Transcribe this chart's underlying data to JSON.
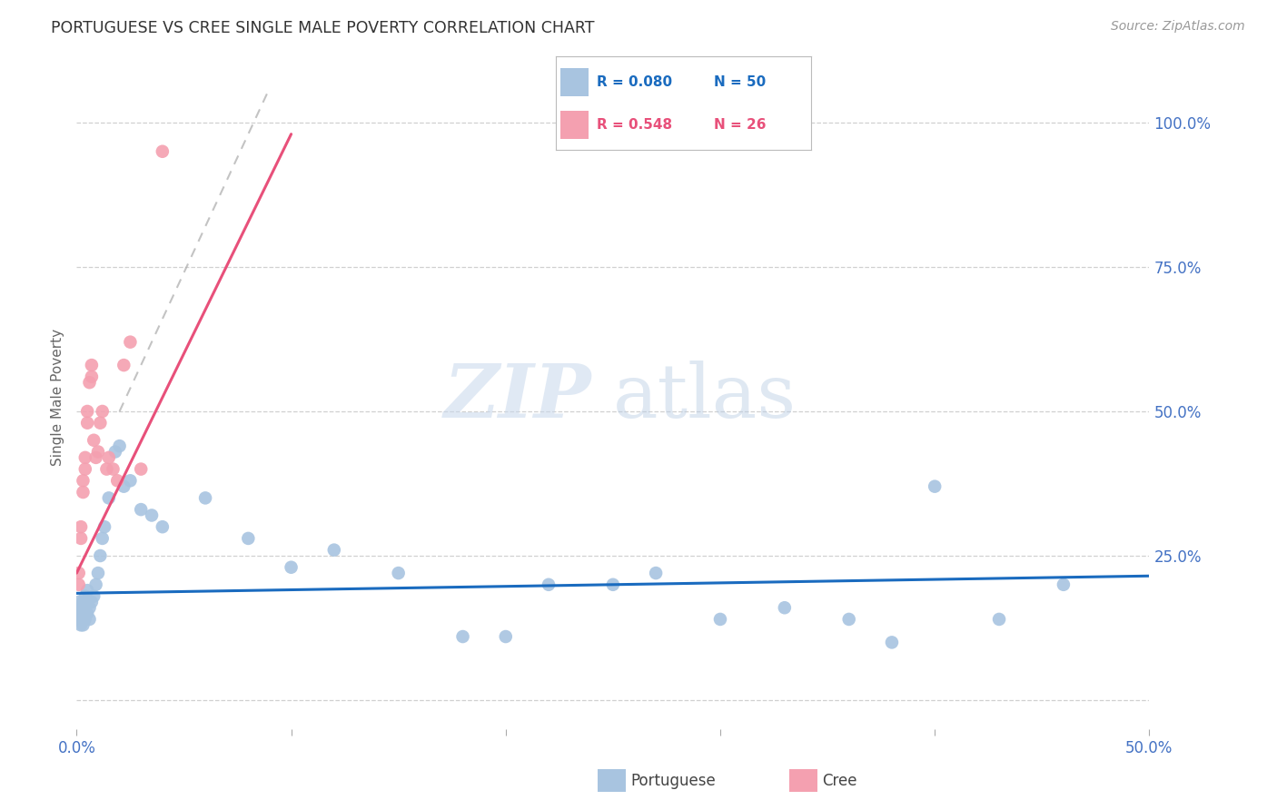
{
  "title": "PORTUGUESE VS CREE SINGLE MALE POVERTY CORRELATION CHART",
  "source": "Source: ZipAtlas.com",
  "ylabel": "Single Male Poverty",
  "right_yticks": [
    "100.0%",
    "75.0%",
    "50.0%",
    "25.0%"
  ],
  "right_ytick_vals": [
    1.0,
    0.75,
    0.5,
    0.25
  ],
  "portuguese_color": "#a8c4e0",
  "cree_color": "#f4a0b0",
  "trendline_portuguese_color": "#1a6bbf",
  "trendline_cree_color": "#e8507a",
  "background_color": "#ffffff",
  "grid_color": "#d0d0d0",
  "axis_color": "#4472c4",
  "portuguese_x": [
    0.001,
    0.001,
    0.001,
    0.002,
    0.002,
    0.002,
    0.002,
    0.003,
    0.003,
    0.003,
    0.004,
    0.004,
    0.004,
    0.005,
    0.005,
    0.005,
    0.006,
    0.006,
    0.007,
    0.008,
    0.009,
    0.01,
    0.011,
    0.012,
    0.013,
    0.015,
    0.018,
    0.02,
    0.022,
    0.025,
    0.03,
    0.035,
    0.04,
    0.06,
    0.08,
    0.1,
    0.12,
    0.15,
    0.18,
    0.2,
    0.22,
    0.25,
    0.27,
    0.3,
    0.33,
    0.36,
    0.38,
    0.4,
    0.43,
    0.46
  ],
  "portuguese_y": [
    0.17,
    0.15,
    0.14,
    0.16,
    0.15,
    0.14,
    0.13,
    0.17,
    0.15,
    0.13,
    0.18,
    0.16,
    0.14,
    0.19,
    0.17,
    0.15,
    0.16,
    0.14,
    0.17,
    0.18,
    0.2,
    0.22,
    0.25,
    0.28,
    0.3,
    0.35,
    0.43,
    0.44,
    0.37,
    0.38,
    0.33,
    0.32,
    0.3,
    0.35,
    0.28,
    0.23,
    0.26,
    0.22,
    0.11,
    0.11,
    0.2,
    0.2,
    0.22,
    0.14,
    0.16,
    0.14,
    0.1,
    0.37,
    0.14,
    0.2
  ],
  "cree_x": [
    0.001,
    0.001,
    0.002,
    0.002,
    0.003,
    0.003,
    0.004,
    0.004,
    0.005,
    0.005,
    0.006,
    0.007,
    0.007,
    0.008,
    0.009,
    0.01,
    0.011,
    0.012,
    0.014,
    0.015,
    0.017,
    0.019,
    0.022,
    0.025,
    0.03,
    0.04
  ],
  "cree_y": [
    0.22,
    0.2,
    0.3,
    0.28,
    0.38,
    0.36,
    0.42,
    0.4,
    0.5,
    0.48,
    0.55,
    0.58,
    0.56,
    0.45,
    0.42,
    0.43,
    0.48,
    0.5,
    0.4,
    0.42,
    0.4,
    0.38,
    0.58,
    0.62,
    0.4,
    0.95
  ],
  "cree_trendline_x0": 0.0,
  "cree_trendline_x1": 0.1,
  "cree_trendline_y0": 0.22,
  "cree_trendline_y1": 0.98,
  "port_trendline_x0": 0.0,
  "port_trendline_x1": 0.5,
  "port_trendline_y0": 0.185,
  "port_trendline_y1": 0.215,
  "xlim": [
    0.0,
    0.5
  ],
  "ylim": [
    -0.05,
    1.1
  ]
}
